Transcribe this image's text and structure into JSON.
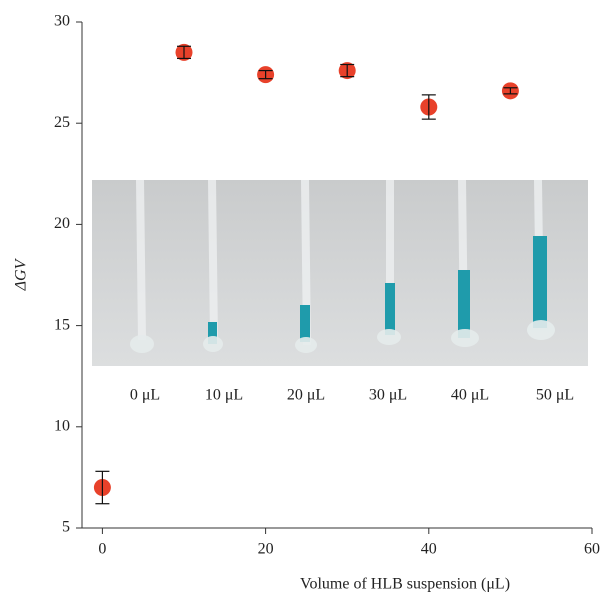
{
  "chart_data": {
    "type": "scatter",
    "x_label": "Volume of HLB suspension (μL)",
    "y_label": "ΔGV",
    "x": [
      0,
      10,
      20,
      30,
      40,
      50
    ],
    "series": [
      {
        "color": "#e8412a",
        "values": [
          7.0,
          28.5,
          27.4,
          27.6,
          25.8,
          26.6
        ],
        "errors": [
          0.8,
          0.3,
          0.2,
          0.3,
          0.6,
          0.15
        ]
      }
    ],
    "xlim": [
      -2.5,
      60
    ],
    "xticks": [
      0,
      20,
      40,
      60
    ],
    "ylim": [
      5,
      30
    ],
    "yticks": [
      5,
      10,
      15,
      20,
      25,
      30
    ],
    "annotations": [
      "0 μL",
      "10 μL",
      "20 μL",
      "30 μL",
      "40 μL",
      "50 μL"
    ]
  }
}
